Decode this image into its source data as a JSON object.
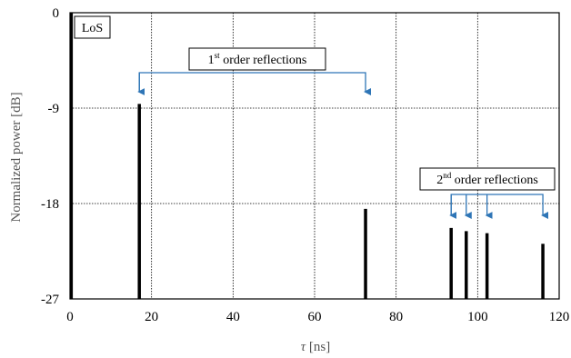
{
  "chart_data": {
    "type": "bar",
    "xlabel_symbol": "τ",
    "xlabel_unit": " [ns]",
    "ylabel": "Normalized power [dB]",
    "xlim": [
      0,
      120
    ],
    "ylim": [
      -27,
      0
    ],
    "xticks": [
      0,
      20,
      40,
      60,
      80,
      100,
      120
    ],
    "yticks": [
      0,
      -9,
      -18,
      -27
    ],
    "grid": true,
    "series": [
      {
        "values": [
          {
            "x": 0.3,
            "y": 0
          },
          {
            "x": 17,
            "y": -8.6
          },
          {
            "x": 72.5,
            "y": -18.5
          },
          {
            "x": 93.5,
            "y": -20.3
          },
          {
            "x": 97.2,
            "y": -20.6
          },
          {
            "x": 102.3,
            "y": -20.8
          },
          {
            "x": 116,
            "y": -21.8
          }
        ]
      }
    ],
    "annotations": [
      {
        "name": "los-label",
        "text": "LoS"
      },
      {
        "name": "first-order",
        "text_prefix": "1",
        "text_sup": "st",
        "text_suffix": " order reflections",
        "arrow_targets_x": [
          17,
          72.5
        ]
      },
      {
        "name": "second-order",
        "text_prefix": "2",
        "text_sup": "nd",
        "text_suffix": " order reflections",
        "arrow_targets_x": [
          93.5,
          97.2,
          102.3,
          116
        ]
      }
    ],
    "colors": {
      "bars": "#000000",
      "grid": "#000000",
      "arrows": "#2e75b6"
    }
  }
}
